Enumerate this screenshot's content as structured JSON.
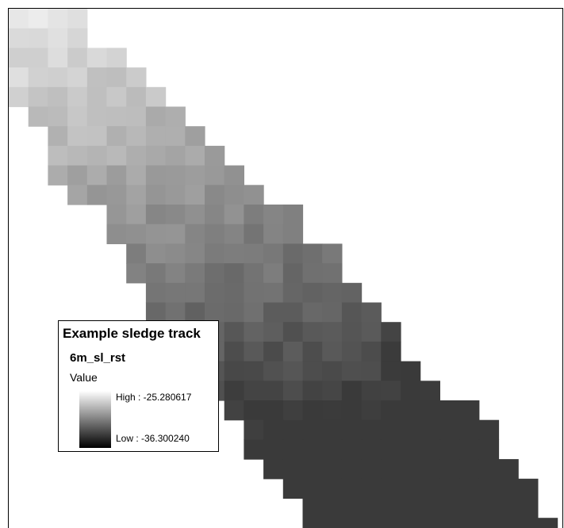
{
  "legend": {
    "title": "Example sledge track",
    "layer_name": "6m_sl_rst",
    "field_label": "Value",
    "high_label": "High : -25.280617",
    "low_label": "Low : -36.300240",
    "ramp_colors": [
      "#ffffff",
      "#000000"
    ]
  },
  "raster": {
    "high_value": -25.280617,
    "low_value": -36.30024
  }
}
